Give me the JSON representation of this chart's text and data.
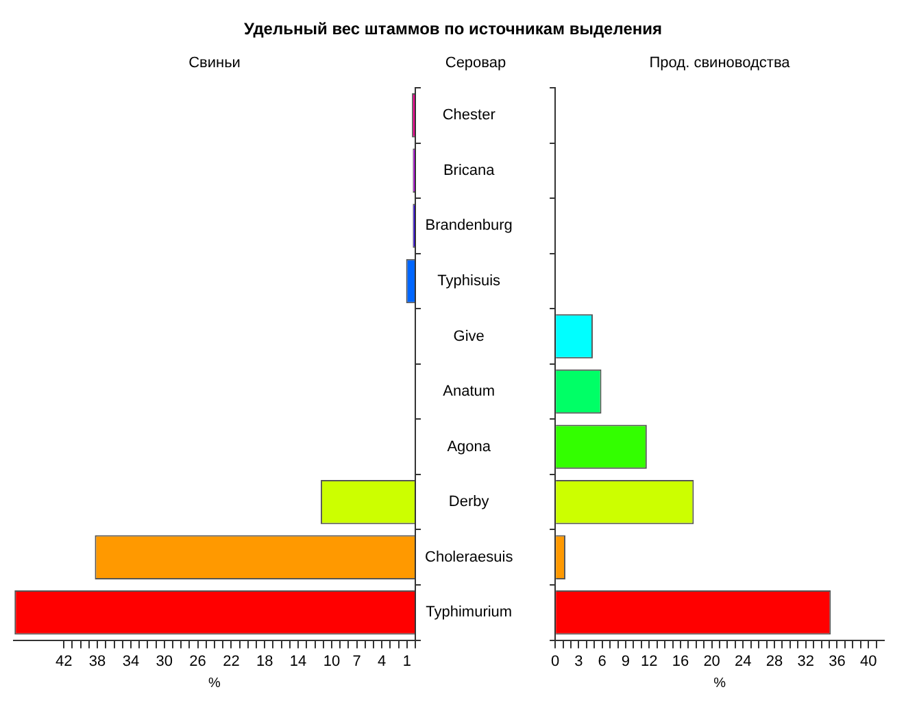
{
  "chart_data": [
    {
      "type": "bar",
      "orientation": "horizontal",
      "title": "Удельный вес штаммов по источникам выделения",
      "subtitle": "Свиньи",
      "ylabel": "Серовар",
      "xlabel": "%",
      "categories": [
        "Chester",
        "Bricana",
        "Brandenburg",
        "Typhisuis",
        "Give",
        "Anatum",
        "Agona",
        "Derby",
        "Choleraesuis",
        "Typhimurium"
      ],
      "values": [
        0.4,
        0.3,
        0.3,
        1.1,
        0,
        0,
        0,
        11.3,
        38.3,
        47.9
      ],
      "colors": [
        "#ff0099",
        "#cc00ff",
        "#3300ff",
        "#0066ff",
        "#00ffff",
        "#00ff66",
        "#33ff00",
        "#ccff00",
        "#ff9900",
        "#ff0000"
      ],
      "xlim": [
        48,
        0
      ],
      "xticks": [
        {
          "value": 0,
          "label": null
        },
        1,
        {
          "value": 2,
          "label": null
        },
        {
          "value": 3,
          "label": null
        },
        4,
        {
          "value": 5,
          "label": null
        },
        {
          "value": 6,
          "label": null
        },
        7,
        {
          "value": 8,
          "label": null
        },
        {
          "value": 9,
          "label": null
        },
        10,
        {
          "value": 11,
          "label": null
        },
        {
          "value": 12,
          "label": null
        },
        {
          "value": 13,
          "label": null
        },
        14,
        {
          "value": 15,
          "label": null
        },
        {
          "value": 16,
          "label": null
        },
        {
          "value": 17,
          "label": null
        },
        18,
        {
          "value": 19,
          "label": null
        },
        {
          "value": 20,
          "label": null
        },
        {
          "value": 21,
          "label": null
        },
        22,
        {
          "value": 23,
          "label": null
        },
        {
          "value": 24,
          "label": null
        },
        {
          "value": 25,
          "label": null
        },
        26,
        {
          "value": 27,
          "label": null
        },
        {
          "value": 28,
          "label": null
        },
        {
          "value": 29,
          "label": null
        },
        30,
        {
          "value": 31,
          "label": null
        },
        {
          "value": 32,
          "label": null
        },
        {
          "value": 33,
          "label": null
        },
        34,
        {
          "value": 35,
          "label": null
        },
        {
          "value": 36,
          "label": null
        },
        {
          "value": 37,
          "label": null
        },
        38,
        {
          "value": 39,
          "label": null
        },
        {
          "value": 40,
          "label": null
        },
        {
          "value": 41,
          "label": null
        },
        42
      ],
      "grid": false,
      "legend": false
    },
    {
      "type": "bar",
      "orientation": "horizontal",
      "subtitle": "Прод. свиноводства",
      "xlabel": "%",
      "categories": [
        null,
        null,
        null,
        null,
        null,
        null,
        null,
        null,
        null,
        null
      ],
      "values": [
        0,
        0,
        0,
        0,
        4.8,
        5.9,
        11.7,
        17.7,
        1.3,
        35.2
      ],
      "colors": [
        "#ff0099",
        "#cc00ff",
        "#3300ff",
        "#0066ff",
        "#00ffff",
        "#00ff66",
        "#33ff00",
        "#ccff00",
        "#ff9900",
        "#ff0000"
      ],
      "xlim": [
        0,
        42
      ],
      "xticks": [
        0,
        {
          "value": 1,
          "label": null
        },
        {
          "value": 2,
          "label": null
        },
        3,
        {
          "value": 4,
          "label": null
        },
        {
          "value": 5,
          "label": null
        },
        6,
        {
          "value": 7,
          "label": null
        },
        {
          "value": 8,
          "label": null
        },
        9,
        {
          "value": 10,
          "label": null
        },
        {
          "value": 11,
          "label": null
        },
        12,
        {
          "value": 13,
          "label": null
        },
        {
          "value": 14,
          "label": null
        },
        {
          "value": 15,
          "label": null
        },
        16,
        {
          "value": 17,
          "label": null
        },
        {
          "value": 18,
          "label": null
        },
        {
          "value": 19,
          "label": null
        },
        20,
        {
          "value": 21,
          "label": null
        },
        {
          "value": 22,
          "label": null
        },
        {
          "value": 23,
          "label": null
        },
        24,
        {
          "value": 25,
          "label": null
        },
        {
          "value": 26,
          "label": null
        },
        {
          "value": 27,
          "label": null
        },
        28,
        {
          "value": 29,
          "label": null
        },
        {
          "value": 30,
          "label": null
        },
        {
          "value": 31,
          "label": null
        },
        32,
        {
          "value": 33,
          "label": null
        },
        {
          "value": 34,
          "label": null
        },
        {
          "value": 35,
          "label": null
        },
        36,
        {
          "value": 37,
          "label": null
        },
        {
          "value": 38,
          "label": null
        },
        {
          "value": 39,
          "label": null
        },
        40,
        {
          "value": 41,
          "label": null
        }
      ],
      "tick_labels": "x",
      "grid": false,
      "legend": false
    }
  ]
}
